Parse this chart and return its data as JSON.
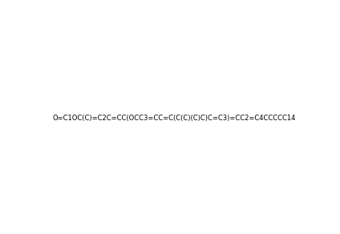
{
  "smiles": "O=C1OC(C)=C2C=CC(OCC3=CC=C(C(C)(C)C)C=C3)=CC2=C4CCCCC14",
  "title": "",
  "bg_color": "#ffffff",
  "line_color": "#000000",
  "figsize": [
    4.24,
    2.92
  ],
  "dpi": 100
}
